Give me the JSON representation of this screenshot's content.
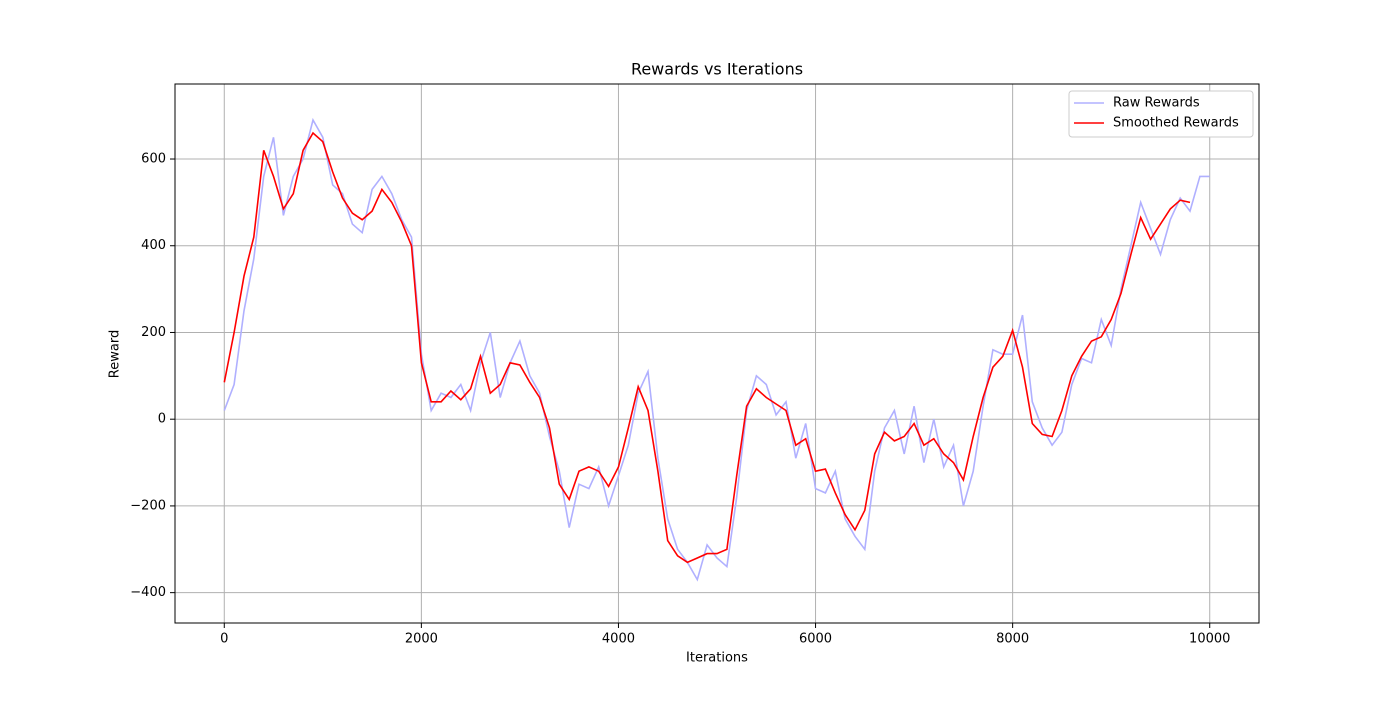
{
  "chart_data": {
    "type": "line",
    "title": "Rewards vs Iterations",
    "xlabel": "Iterations",
    "ylabel": "Reward",
    "x": [
      0,
      100,
      200,
      300,
      400,
      500,
      600,
      700,
      800,
      900,
      1000,
      1100,
      1200,
      1300,
      1400,
      1500,
      1600,
      1700,
      1800,
      1900,
      2000,
      2100,
      2200,
      2300,
      2400,
      2500,
      2600,
      2700,
      2800,
      2900,
      3000,
      3100,
      3200,
      3300,
      3400,
      3500,
      3600,
      3700,
      3800,
      3900,
      4000,
      4100,
      4200,
      4300,
      4400,
      4500,
      4600,
      4700,
      4800,
      4900,
      5000,
      5100,
      5200,
      5300,
      5400,
      5500,
      5600,
      5700,
      5800,
      5900,
      6000,
      6100,
      6200,
      6300,
      6400,
      6500,
      6600,
      6700,
      6800,
      6900,
      7000,
      7100,
      7200,
      7300,
      7400,
      7500,
      7600,
      7700,
      7800,
      7900,
      8000,
      8100,
      8200,
      8300,
      8400,
      8500,
      8600,
      8700,
      8800,
      8900,
      9000,
      9100,
      9200,
      9300,
      9400,
      9500,
      9600,
      9700,
      9800,
      9900,
      10000
    ],
    "series": [
      {
        "name": "Raw Rewards",
        "color": "#b0b0ff",
        "values": [
          20,
          80,
          250,
          370,
          560,
          650,
          470,
          560,
          600,
          690,
          650,
          540,
          520,
          450,
          430,
          530,
          560,
          520,
          460,
          420,
          150,
          20,
          60,
          50,
          80,
          20,
          130,
          200,
          50,
          130,
          180,
          100,
          60,
          -40,
          -120,
          -250,
          -150,
          -160,
          -110,
          -200,
          -130,
          -60,
          60,
          110,
          -90,
          -230,
          -300,
          -330,
          -370,
          -290,
          -320,
          -340,
          -180,
          20,
          100,
          80,
          10,
          40,
          -90,
          -10,
          -160,
          -170,
          -120,
          -230,
          -270,
          -300,
          -120,
          -20,
          20,
          -80,
          30,
          -100,
          0,
          -110,
          -60,
          -200,
          -120,
          30,
          160,
          150,
          150,
          240,
          40,
          -20,
          -60,
          -30,
          80,
          140,
          130,
          230,
          170,
          300,
          400,
          500,
          440,
          380,
          460,
          510,
          480,
          560,
          560
        ]
      },
      {
        "name": "Smoothed Rewards",
        "color": "#ff0000",
        "values": [
          85,
          200,
          330,
          420,
          620,
          560,
          485,
          520,
          620,
          660,
          640,
          570,
          510,
          475,
          460,
          480,
          530,
          500,
          455,
          400,
          130,
          40,
          40,
          65,
          45,
          70,
          145,
          60,
          80,
          130,
          125,
          85,
          50,
          -20,
          -150,
          -185,
          -120,
          -110,
          -120,
          -155,
          -110,
          -20,
          75,
          20,
          -120,
          -280,
          -315,
          -330,
          -320,
          -310,
          -310,
          -300,
          -130,
          30,
          70,
          50,
          35,
          20,
          -60,
          -45,
          -120,
          -115,
          -170,
          -220,
          -255,
          -210,
          -80,
          -30,
          -50,
          -40,
          -10,
          -60,
          -45,
          -80,
          -100,
          -140,
          -40,
          50,
          120,
          145,
          205,
          120,
          -10,
          -35,
          -40,
          20,
          100,
          145,
          180,
          190,
          230,
          290,
          380,
          465,
          415,
          450,
          485,
          505,
          500,
          null,
          null
        ]
      }
    ],
    "xlim": [
      -500,
      10500
    ],
    "ylim": [
      -470,
      773
    ],
    "xticks": [
      0,
      2000,
      4000,
      6000,
      8000,
      10000
    ],
    "yticks": [
      {
        "value": -400,
        "label": "−400"
      },
      {
        "value": -200,
        "label": "−200"
      },
      0,
      200,
      400,
      600
    ],
    "grid": true,
    "legend": "upper right"
  }
}
